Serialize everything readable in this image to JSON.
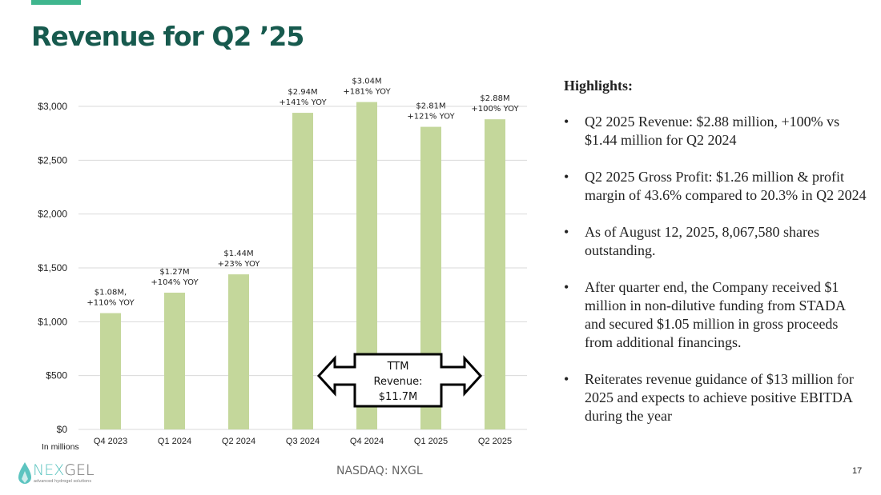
{
  "slide": {
    "title": "Revenue for Q2 ’25",
    "page_number": "17",
    "ticker": "NASDAQ: NXGL",
    "units_note": "In millions",
    "logo": {
      "name_part1": "NEX",
      "name_part2": "GEL",
      "tagline": "advanced hydrogel solutions"
    },
    "colors": {
      "accent": "#3fb68e",
      "title": "#175a4e",
      "bar": "#c4d79b",
      "gridline": "#d9d9d9"
    }
  },
  "chart_data": {
    "type": "bar",
    "title": "",
    "xlabel": "",
    "ylabel": "",
    "categories": [
      "Q4 2023",
      "Q1 2024",
      "Q2 2024",
      "Q3 2024",
      "Q4 2024",
      "Q1 2025",
      "Q2 2025"
    ],
    "values": [
      1080,
      1270,
      1440,
      2940,
      3040,
      2810,
      2880
    ],
    "value_units": "thousands USD (axis shown in $, labelled in millions)",
    "data_labels": [
      [
        "$1.08M,",
        "+110% YOY"
      ],
      [
        "$1.27M",
        "+104% YOY"
      ],
      [
        "$1.44M",
        "+23% YOY"
      ],
      [
        "$2.94M",
        "+141% YOY"
      ],
      [
        "$3.04M",
        "+181% YOY"
      ],
      [
        "$2.81M",
        "+121% YOY"
      ],
      [
        "$2.88M",
        "+100% YOY"
      ]
    ],
    "yticks": [
      0,
      500,
      1000,
      1500,
      2000,
      2500,
      3000
    ],
    "ytick_labels": [
      "$0",
      "$500",
      "$1,000",
      "$1,500",
      "$2,000",
      "$2,500",
      "$3,000"
    ],
    "ylim": [
      0,
      3000
    ],
    "grid": true,
    "legend": "none",
    "annotation": {
      "lines": [
        "TTM",
        "Revenue:",
        "$11.7M"
      ],
      "shape": "double-arrow",
      "spans": [
        "Q3 2024",
        "Q2 2025"
      ]
    }
  },
  "highlights": {
    "heading": "Highlights:",
    "bullet_glyph": "•",
    "items": [
      "Q2 2025 Revenue: $2.88 million, +100% vs $1.44 million for Q2 2024",
      "Q2 2025 Gross Profit: $1.26 million & profit margin of 43.6% compared to 20.3% in Q2 2024",
      "As of August 12, 2025, 8,067,580 shares outstanding.",
      "After quarter end, the Company received $1 million in non-dilutive funding from STADA and secured $1.05 million in gross proceeds from additional financings.",
      "Reiterates revenue guidance of $13 million for 2025 and expects to achieve positive EBITDA during the year"
    ]
  }
}
